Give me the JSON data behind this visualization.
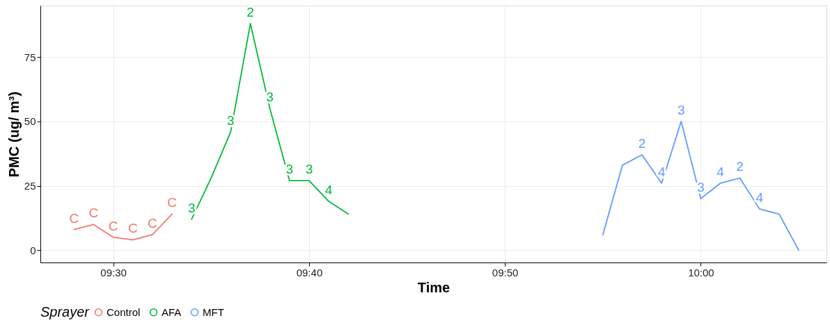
{
  "chart_data": {
    "type": "line",
    "xlabel": "Time",
    "ylabel": "PMC (ug/ m³)",
    "legend_title": "Sprayer",
    "legend": "bottom",
    "grid": true,
    "marker": "none",
    "line_style": "solid",
    "xlim": [
      9.438,
      10.107
    ],
    "ylim": [
      -4.8,
      95
    ],
    "xticks": [
      {
        "value": 9.5,
        "label": "09:30"
      },
      {
        "value": 9.6667,
        "label": "09:40"
      },
      {
        "value": 9.8333,
        "label": "09:50"
      },
      {
        "value": 10.0,
        "label": "10:00"
      }
    ],
    "yticks": [
      0,
      25,
      50,
      75
    ],
    "series": [
      {
        "name": "Control",
        "color": "#f8766d",
        "x": [
          9.4667,
          9.4833,
          9.5,
          9.5167,
          9.5333,
          9.55
        ],
        "values": [
          8,
          10,
          5,
          4,
          6,
          14
        ]
      },
      {
        "name": "AFA",
        "color": "#00ba38",
        "x": [
          9.5667,
          9.5833,
          9.6,
          9.6167,
          9.6333,
          9.65,
          9.6667,
          9.6833,
          9.7
        ],
        "values": [
          12,
          28,
          46,
          88,
          55,
          27,
          27,
          19,
          14
        ]
      },
      {
        "name": "MFT",
        "color": "#619cff",
        "x": [
          9.9167,
          9.9333,
          9.95,
          9.9667,
          9.9833,
          10.0,
          10.0167,
          10.0333,
          10.05,
          10.0667,
          10.0833
        ],
        "values": [
          6,
          33,
          37,
          26,
          50,
          20,
          26,
          28,
          16,
          14,
          0
        ]
      }
    ],
    "annotations": [
      {
        "text": "C",
        "x": 9.4667,
        "y": 8
      },
      {
        "text": "C",
        "x": 9.4833,
        "y": 10
      },
      {
        "text": "C",
        "x": 9.5,
        "y": 5
      },
      {
        "text": "C",
        "x": 9.5167,
        "y": 4
      },
      {
        "text": "C",
        "x": 9.5333,
        "y": 6
      },
      {
        "text": "C",
        "x": 9.55,
        "y": 14
      },
      {
        "text": "3",
        "x": 9.5667,
        "y": 12
      },
      {
        "text": "3",
        "x": 9.6,
        "y": 46
      },
      {
        "text": "2",
        "x": 9.6167,
        "y": 88
      },
      {
        "text": "3",
        "x": 9.6333,
        "y": 55
      },
      {
        "text": "3",
        "x": 9.65,
        "y": 27
      },
      {
        "text": "3",
        "x": 9.6667,
        "y": 27
      },
      {
        "text": "4",
        "x": 9.6833,
        "y": 19
      },
      {
        "text": "2",
        "x": 9.95,
        "y": 37
      },
      {
        "text": "4",
        "x": 9.9667,
        "y": 26
      },
      {
        "text": "3",
        "x": 9.9833,
        "y": 50
      },
      {
        "text": "3",
        "x": 10.0,
        "y": 20
      },
      {
        "text": "4",
        "x": 10.0167,
        "y": 26
      },
      {
        "text": "2",
        "x": 10.0333,
        "y": 28
      },
      {
        "text": "4",
        "x": 10.05,
        "y": 16
      }
    ]
  }
}
